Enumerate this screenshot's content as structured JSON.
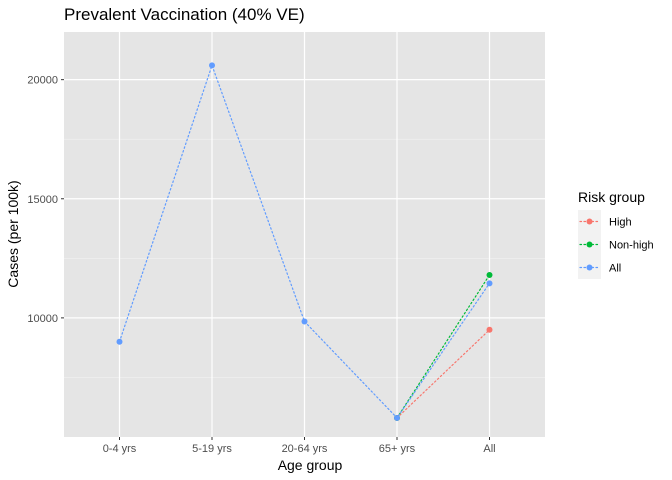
{
  "chart_data": {
    "type": "line",
    "title": "Prevalent Vaccination (40% VE)",
    "xlabel": "Age group",
    "ylabel": "Cases (per 100k)",
    "categories": [
      "0-4 yrs",
      "5-19 yrs",
      "20-64 yrs",
      "65+ yrs",
      "All"
    ],
    "ylim": [
      5000,
      22000
    ],
    "yticks": [
      10000,
      15000,
      20000
    ],
    "grid": true,
    "legend": {
      "title": "Risk group",
      "position": "right"
    },
    "series": [
      {
        "name": "High",
        "color": "#F8766D",
        "values": [
          null,
          null,
          null,
          5800,
          9500
        ]
      },
      {
        "name": "Non-high",
        "color": "#00BA38",
        "values": [
          null,
          null,
          null,
          5800,
          11800
        ]
      },
      {
        "name": "All",
        "color": "#619CFF",
        "values": [
          9000,
          20600,
          9850,
          5800,
          11450
        ]
      }
    ]
  }
}
